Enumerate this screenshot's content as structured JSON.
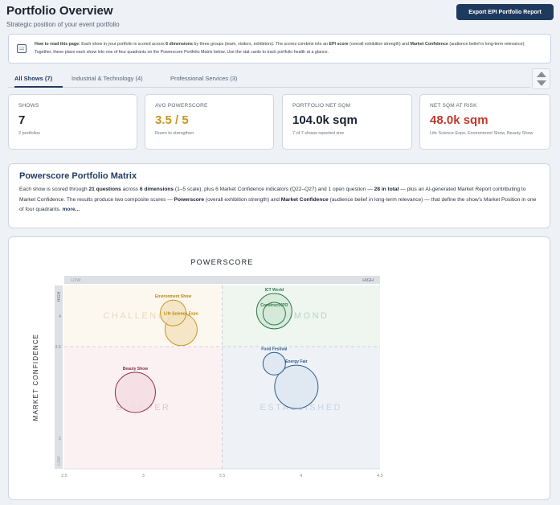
{
  "header": {
    "title": "Portfolio Overview",
    "subtitle": "Strategic position of your event portfolio",
    "export_label": "Export EPI Portfolio Report"
  },
  "info": {
    "icon": "book-icon",
    "lead": "How to read this page:",
    "t1": " Each show in your portfolio is scored across ",
    "b1": "6 dimensions",
    "t2": " by three groups (team, visitors, exhibitors). The scores combine into an ",
    "b2": "EPI score",
    "t3": " (overall exhibition strength) and ",
    "b3": "Market Confidence",
    "t4": " (audience belief in long-term relevance). Together, these place each show into one of four quadrants on the Powerscore Portfolio Matrix below. Use the stat cards to track portfolio health at a glance."
  },
  "tabs": [
    {
      "label": "All Shows (7)"
    },
    {
      "label": "Industrial & Technology (4)"
    },
    {
      "label": "Professional Services (3)"
    }
  ],
  "stats": [
    {
      "label": "Shows",
      "value": "7",
      "note": "2 portfolios",
      "color": "#1a2230"
    },
    {
      "label": "Avg Powerscore",
      "value": "3.5 / 5",
      "note": "Room to strengthen",
      "color": "#c8961e"
    },
    {
      "label": "Portfolio Net SQM",
      "value": "104.0k sqm",
      "note": "7 of 7 shows reported size",
      "color": "#1a2230"
    },
    {
      "label": "Net SQM at Risk",
      "value": "48.0k sqm",
      "note": "Life Science Expo, Environment Show, Beauty Show",
      "color": "#c0392b"
    }
  ],
  "matrix": {
    "title": "Powerscore Portfolio Matrix",
    "p1": "Each show is scored through ",
    "b1": "21 questions",
    "p2": " across ",
    "b2": "6 dimensions",
    "p3": " (1–5 scale), plus 6 Market Confidence indicators (Q22–Q27) and 1 open question — ",
    "b3": "28 in total",
    "p4": " — plus an AI-generated Market Report contributing to Market Confidence. The results produce two composite scores — ",
    "b4": "Powerscore",
    "p5": " (overall exhibition strength) and ",
    "b5": "Market Confidence",
    "p6": " (audience belief in long-term relevance) — that define the show's Market Position in one of four quadrants.",
    "more": "more..."
  },
  "chart_data": {
    "type": "scatter",
    "title": "POWERSCORE",
    "ylabel": "MARKET CONFIDENCE",
    "xlim": [
      2.5,
      4.5
    ],
    "ylim": [
      1.5,
      4.5
    ],
    "x_ticks": [
      "2.5",
      "3",
      "3.5",
      "4",
      "4.5"
    ],
    "y_ticks": [
      "2",
      "3.5",
      "4"
    ],
    "top_band": {
      "low": "LOW",
      "high": "HIGH"
    },
    "side_band": {
      "low": "LOW",
      "high": "HIGH"
    },
    "quadrants": [
      {
        "label": "CHALLENGER",
        "color": "#fdf8ef",
        "text_color": "#e6d9b8"
      },
      {
        "label": "DIAMOND",
        "color": "#eef6ef",
        "text_color": "#bcd3c3"
      },
      {
        "label": "SLEEPER",
        "color": "#fbf1f3",
        "text_color": "#e6c5cc"
      },
      {
        "label": "ESTABLISHED",
        "color": "#eef2f7",
        "text_color": "#c7d3e2"
      }
    ],
    "points": [
      {
        "name": "Environment Show",
        "x": 3.19,
        "y": 4.05,
        "size": 8,
        "fill": "#f2e3c0",
        "stroke": "#c8961e",
        "label_color": "#b8860b"
      },
      {
        "name": "Life Science Expo",
        "x": 3.24,
        "y": 3.78,
        "size": 10,
        "fill": "#f2e3c0",
        "stroke": "#c8961e",
        "label_color": "#b8860b"
      },
      {
        "name": "ICT World",
        "x": 3.83,
        "y": 4.08,
        "size": 11,
        "fill": "#d4e9d8",
        "stroke": "#2f7a47",
        "label_color": "#2f7a47"
      },
      {
        "name": "ConstructXPO",
        "x": 3.83,
        "y": 4.04,
        "size": 7,
        "fill": "#d4e9d8",
        "stroke": "#2f7a47",
        "label_color": "#2f7a47"
      },
      {
        "name": "Food Festival",
        "x": 3.83,
        "y": 3.22,
        "size": 7,
        "fill": "#dde6f1",
        "stroke": "#2c5a8c",
        "label_color": "#2c5a8c"
      },
      {
        "name": "Energy Fair",
        "x": 3.97,
        "y": 2.84,
        "size": 13.5,
        "fill": "#dde6f1",
        "stroke": "#2c5a8c",
        "label_color": "#2c5a8c"
      },
      {
        "name": "Beauty Show",
        "x": 2.95,
        "y": 2.75,
        "size": 12.5,
        "fill": "#f3dde2",
        "stroke": "#8b2e4a",
        "label_color": "#8b2e4a"
      }
    ]
  }
}
